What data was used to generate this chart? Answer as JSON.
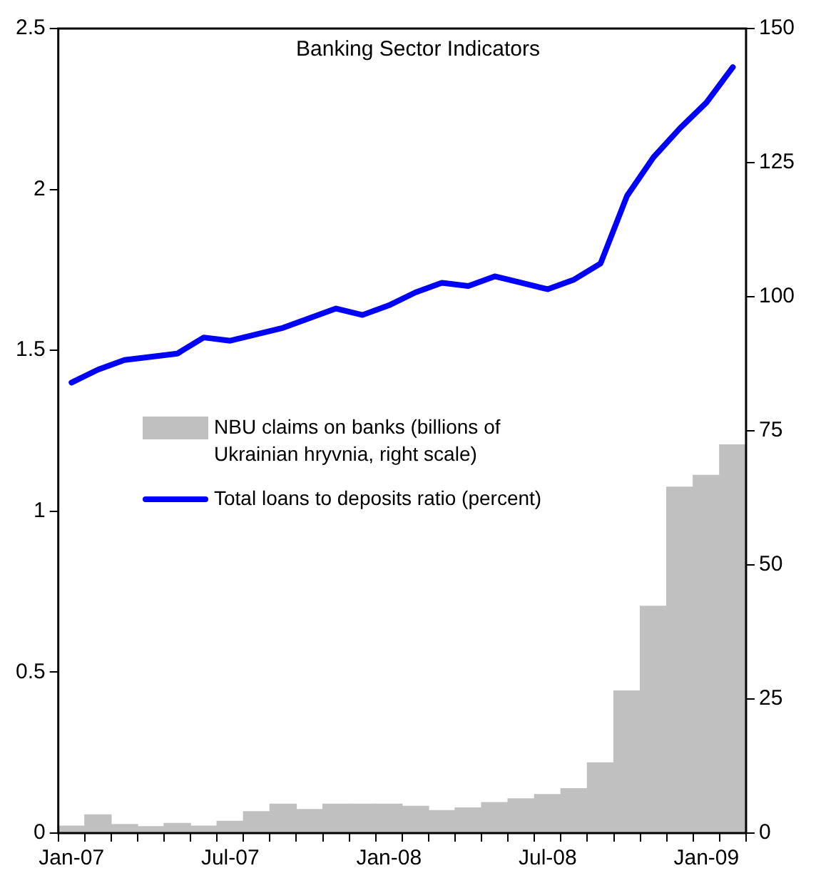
{
  "chart_data": {
    "type": "bar",
    "title": "Banking Sector Indicators",
    "categories": [
      "Jan-07",
      null,
      null,
      null,
      null,
      null,
      "Jul-07",
      null,
      null,
      null,
      null,
      null,
      "Jan-08",
      null,
      null,
      null,
      null,
      null,
      "Jul-08",
      null,
      null,
      null,
      null,
      null,
      "Jan-09",
      null
    ],
    "series": [
      {
        "name": "NBU claims on banks (billions of Ukrainian hryvnia, right scale)",
        "axis": "y2",
        "color": "#c0c0c0",
        "values": [
          1.3,
          3.4,
          1.6,
          1.2,
          1.8,
          1.3,
          2.2,
          4.0,
          5.4,
          4.4,
          5.4,
          5.4,
          5.4,
          5.0,
          4.2,
          4.7,
          5.7,
          6.4,
          7.2,
          8.3,
          13.1,
          26.5,
          42.3,
          64.5,
          66.7,
          72.4
        ]
      },
      {
        "name": "Total loans to deposits ratio (percent)",
        "type": "line",
        "color": "#0000ff",
        "values": [
          1.4,
          1.44,
          1.47,
          1.48,
          1.49,
          1.54,
          1.53,
          1.55,
          1.57,
          1.6,
          1.63,
          1.61,
          1.64,
          1.68,
          1.71,
          1.7,
          1.73,
          1.71,
          1.69,
          1.72,
          1.77,
          1.98,
          2.1,
          2.19,
          2.27,
          2.38
        ]
      }
    ],
    "ylim": [
      0,
      2.5
    ],
    "yticks": [
      0,
      0.5,
      1,
      1.5,
      2,
      2.5
    ],
    "y2lim": [
      0,
      150
    ],
    "y2ticks": [
      0,
      25,
      50,
      75,
      100,
      125,
      150
    ],
    "grid": false,
    "legend": "left",
    "marker": "none"
  }
}
